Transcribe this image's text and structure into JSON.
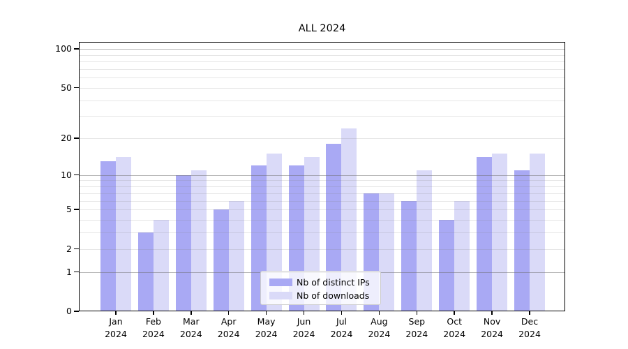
{
  "page": {
    "background": "#ffffff"
  },
  "chart_data": {
    "type": "bar",
    "title": "ALL 2024",
    "categories": [
      "Jan 2024",
      "Feb 2024",
      "Mar 2024",
      "Apr 2024",
      "May 2024",
      "Jun 2024",
      "Jul 2024",
      "Aug 2024",
      "Sep 2024",
      "Oct 2024",
      "Nov 2024",
      "Dec 2024"
    ],
    "series": [
      {
        "name": "Nb of distinct IPs",
        "color": "#a9a9f4",
        "values": [
          13,
          3,
          10,
          5,
          12,
          12,
          18,
          7,
          6,
          4,
          14,
          11
        ]
      },
      {
        "name": "Nb of downloads",
        "color": "#dadaf8",
        "values": [
          14,
          4,
          11,
          6,
          15,
          14,
          24,
          7,
          11,
          6,
          15,
          15
        ]
      }
    ],
    "xlabel": "",
    "ylabel": "",
    "y_scale": "log1p",
    "ylim": [
      0,
      100
    ],
    "y_tick_values": [
      0,
      1,
      2,
      5,
      10,
      20,
      50,
      100
    ],
    "y_decade_gridlines": [
      1,
      10,
      100
    ],
    "y_minor_gridlines": [
      2,
      3,
      4,
      5,
      6,
      7,
      8,
      9,
      20,
      30,
      40,
      50,
      60,
      70,
      80,
      90
    ],
    "grid": true,
    "legend_position": "lower center inside"
  },
  "colors": {
    "bar_distinct_ips": "#a9a9f4",
    "bar_downloads": "#dadaf8",
    "grid_decade": "#b7b7b7",
    "grid_minor": "#e3e3e3",
    "axis": "#000000",
    "legend_border": "#cccccc"
  }
}
